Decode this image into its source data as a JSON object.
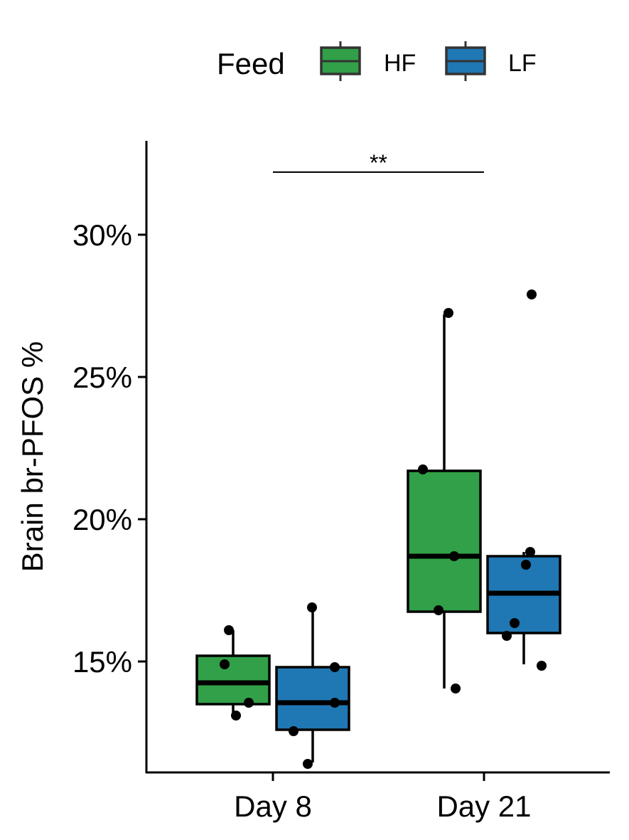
{
  "chart_data": {
    "type": "box",
    "ylabel": "Brain br-PFOS %",
    "xlabel": "",
    "categories": [
      "Day 8",
      "Day 21"
    ],
    "yticks": [
      "15%",
      "20%",
      "25%",
      "30%"
    ],
    "ytick_values": [
      15,
      20,
      25,
      30
    ],
    "ylim": [
      11.1,
      33.3
    ],
    "legend": {
      "title": "Feed",
      "placement": "top",
      "entries": [
        {
          "label": "HF",
          "color": "#31a048"
        },
        {
          "label": "LF",
          "color": "#1f78b4"
        }
      ]
    },
    "series": [
      {
        "name": "HF",
        "color": "#31a048",
        "boxes": [
          {
            "category": "Day 8",
            "whisker_low": 13.2,
            "q1": 13.5,
            "median": 14.25,
            "q3": 15.2,
            "whisker_high": 16.1
          },
          {
            "category": "Day 21",
            "whisker_low": 14.05,
            "q1": 16.75,
            "median": 18.7,
            "q3": 21.7,
            "whisker_high": 27.2
          }
        ],
        "points": [
          {
            "category": "Day 8",
            "values": [
              16.1,
              14.9,
              13.55,
              13.1
            ]
          },
          {
            "category": "Day 21",
            "values": [
              27.25,
              21.75,
              18.7,
              16.8,
              14.05
            ]
          }
        ]
      },
      {
        "name": "LF",
        "color": "#1f78b4",
        "boxes": [
          {
            "category": "Day 8",
            "whisker_low": 11.45,
            "q1": 12.6,
            "median": 13.55,
            "q3": 14.8,
            "whisker_high": 16.9
          },
          {
            "category": "Day 21",
            "whisker_low": 14.9,
            "q1": 16.0,
            "median": 17.4,
            "q3": 18.7,
            "whisker_high": 18.85
          }
        ],
        "points": [
          {
            "category": "Day 8",
            "values": [
              16.9,
              14.8,
              13.55,
              12.55,
              11.4
            ]
          },
          {
            "category": "Day 21",
            "values": [
              27.9,
              18.85,
              18.4,
              16.35,
              15.9,
              14.85
            ]
          }
        ]
      }
    ],
    "annotations": [
      {
        "type": "bracket",
        "from": "Day 8",
        "to": "Day 21",
        "y": 32.2,
        "label": "**"
      }
    ]
  }
}
